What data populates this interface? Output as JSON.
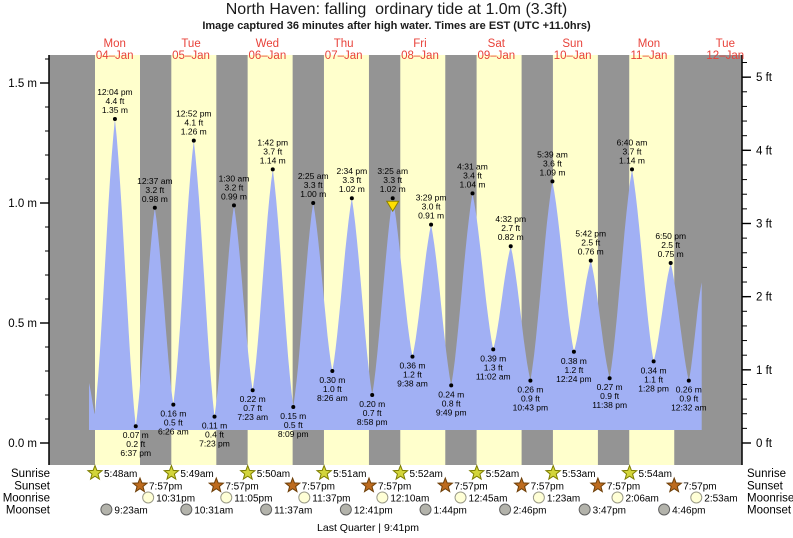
{
  "title": "North Haven: falling  ordinary tide at 1.0m (3.3ft)",
  "subtitle": "Image captured 36 minutes after high water. Times are EST (UTC +11.0hrs)",
  "days": [
    {
      "dow": "Mon",
      "date": "04–Jan"
    },
    {
      "dow": "Tue",
      "date": "05–Jan"
    },
    {
      "dow": "Wed",
      "date": "06–Jan"
    },
    {
      "dow": "Thu",
      "date": "07–Jan"
    },
    {
      "dow": "Fri",
      "date": "08–Jan"
    },
    {
      "dow": "Sat",
      "date": "09–Jan"
    },
    {
      "dow": "Sun",
      "date": "10–Jan"
    },
    {
      "dow": "Mon",
      "date": "11–Jan"
    },
    {
      "dow": "Tue",
      "date": "12–Jan"
    }
  ],
  "axis_left": {
    "unit": "m",
    "major_ticks": [
      {
        "m": 0.0,
        "label": "0.0 m"
      },
      {
        "m": 0.5,
        "label": "0.5 m"
      },
      {
        "m": 1.0,
        "label": "1.0 m"
      },
      {
        "m": 1.5,
        "label": "1.5 m"
      }
    ],
    "minor_step_m": 0.1,
    "minor_max_m": 1.6
  },
  "axis_right": {
    "unit": "ft",
    "major_ticks": [
      {
        "ft": 0,
        "label": "0 ft"
      },
      {
        "ft": 1,
        "label": "1 ft"
      },
      {
        "ft": 2,
        "label": "2 ft"
      },
      {
        "ft": 3,
        "label": "3 ft"
      },
      {
        "ft": 4,
        "label": "4 ft"
      },
      {
        "ft": 5,
        "label": "5 ft"
      }
    ],
    "minor_step_ft": 0.2,
    "minor_max_ft": 5.2
  },
  "chart_data": {
    "type": "area",
    "title": "North Haven tide height, Mon 04-Jan to Tue 12-Jan",
    "x_unit": "hours since Mon 04-Jan 00:00 EST",
    "y_left_label": "metres",
    "y_right_label": "feet",
    "ylim_m": [
      -0.09,
      1.62
    ],
    "grid": false,
    "edges": {
      "start": {
        "t": 3.9,
        "m": 0.25
      },
      "pre_low": {
        "t": 5.75,
        "m": 0.12
      },
      "end": {
        "t": 196.6,
        "m": 0.67
      }
    },
    "events": [
      {
        "kind": "high",
        "t": 12.067,
        "m": 1.35,
        "time": "12:04 pm",
        "ft_label": "4.4 ft",
        "m_label": "1.35 m"
      },
      {
        "kind": "low",
        "t": 18.617,
        "m": 0.07,
        "time": "6:37 pm",
        "ft_label": "0.2 ft",
        "m_label": "0.07 m"
      },
      {
        "kind": "high",
        "t": 24.617,
        "m": 0.98,
        "time": "12:37 am",
        "ft_label": "3.2 ft",
        "m_label": "0.98 m"
      },
      {
        "kind": "low",
        "t": 30.433,
        "m": 0.16,
        "time": "6:26 am",
        "ft_label": "0.5 ft",
        "m_label": "0.16 m"
      },
      {
        "kind": "high",
        "t": 36.867,
        "m": 1.26,
        "time": "12:52 pm",
        "ft_label": "4.1 ft",
        "m_label": "1.26 m"
      },
      {
        "kind": "low",
        "t": 43.383,
        "m": 0.11,
        "time": "7:23 pm",
        "ft_label": "0.4 ft",
        "m_label": "0.11 m"
      },
      {
        "kind": "high",
        "t": 49.5,
        "m": 0.99,
        "time": "1:30 am",
        "ft_label": "3.2 ft",
        "m_label": "0.99 m"
      },
      {
        "kind": "low",
        "t": 55.383,
        "m": 0.22,
        "time": "7:23 am",
        "ft_label": "0.7 ft",
        "m_label": "0.22 m"
      },
      {
        "kind": "high",
        "t": 61.7,
        "m": 1.14,
        "time": "1:42 pm",
        "ft_label": "3.7 ft",
        "m_label": "1.14 m"
      },
      {
        "kind": "low",
        "t": 68.15,
        "m": 0.15,
        "time": "8:09 pm",
        "ft_label": "0.5 ft",
        "m_label": "0.15 m"
      },
      {
        "kind": "high",
        "t": 74.417,
        "m": 1.0,
        "time": "2:25 am",
        "ft_label": "3.3 ft",
        "m_label": "1.00 m"
      },
      {
        "kind": "low",
        "t": 80.433,
        "m": 0.3,
        "time": "8:26 am",
        "ft_label": "1.0 ft",
        "m_label": "0.30 m"
      },
      {
        "kind": "high",
        "t": 86.567,
        "m": 1.02,
        "time": "2:34 pm",
        "ft_label": "3.3 ft",
        "m_label": "1.02 m"
      },
      {
        "kind": "low",
        "t": 92.967,
        "m": 0.2,
        "time": "8:58 pm",
        "ft_label": "0.7 ft",
        "m_label": "0.20 m"
      },
      {
        "kind": "high",
        "t": 99.417,
        "m": 1.02,
        "time": "3:25 am",
        "ft_label": "3.3 ft",
        "m_label": "1.02 m",
        "current": true
      },
      {
        "kind": "low",
        "t": 105.633,
        "m": 0.36,
        "time": "9:38 am",
        "ft_label": "1.2 ft",
        "m_label": "0.36 m"
      },
      {
        "kind": "high",
        "t": 111.483,
        "m": 0.91,
        "time": "3:29 pm",
        "ft_label": "3.0 ft",
        "m_label": "0.91 m"
      },
      {
        "kind": "low",
        "t": 117.817,
        "m": 0.24,
        "time": "9:49 pm",
        "ft_label": "0.8 ft",
        "m_label": "0.24 m"
      },
      {
        "kind": "high",
        "t": 124.517,
        "m": 1.04,
        "time": "4:31 am",
        "ft_label": "3.4 ft",
        "m_label": "1.04 m"
      },
      {
        "kind": "low",
        "t": 131.033,
        "m": 0.39,
        "time": "11:02 am",
        "ft_label": "1.3 ft",
        "m_label": "0.39 m"
      },
      {
        "kind": "high",
        "t": 136.533,
        "m": 0.82,
        "time": "4:32 pm",
        "ft_label": "2.7 ft",
        "m_label": "0.82 m"
      },
      {
        "kind": "low",
        "t": 142.717,
        "m": 0.26,
        "time": "10:43 pm",
        "ft_label": "0.9 ft",
        "m_label": "0.26 m"
      },
      {
        "kind": "high",
        "t": 149.65,
        "m": 1.09,
        "time": "5:39 am",
        "ft_label": "3.6 ft",
        "m_label": "1.09 m"
      },
      {
        "kind": "low",
        "t": 156.4,
        "m": 0.38,
        "time": "12:24 pm",
        "ft_label": "1.2 ft",
        "m_label": "0.38 m"
      },
      {
        "kind": "high",
        "t": 161.7,
        "m": 0.76,
        "time": "5:42 pm",
        "ft_label": "2.5 ft",
        "m_label": "0.76 m"
      },
      {
        "kind": "low",
        "t": 167.633,
        "m": 0.27,
        "time": "11:38 pm",
        "ft_label": "0.9 ft",
        "m_label": "0.27 m"
      },
      {
        "kind": "high",
        "t": 174.667,
        "m": 1.14,
        "time": "6:40 am",
        "ft_label": "3.7 ft",
        "m_label": "1.14 m"
      },
      {
        "kind": "low",
        "t": 181.467,
        "m": 0.34,
        "time": "1:28 pm",
        "ft_label": "1.1 ft",
        "m_label": "0.34 m"
      },
      {
        "kind": "high",
        "t": 186.833,
        "m": 0.75,
        "time": "6:50 pm",
        "ft_label": "2.5 ft",
        "m_label": "0.75 m"
      },
      {
        "kind": "low",
        "t": 192.533,
        "m": 0.26,
        "time": "12:32 am",
        "ft_label": "0.9 ft",
        "m_label": "0.26 m"
      }
    ]
  },
  "astro": {
    "row_labels": [
      "Sunrise",
      "Sunset",
      "Moonrise",
      "Moonset"
    ],
    "sunrise": [
      {
        "t": 5.8,
        "label": "5:48am"
      },
      {
        "t": 29.817,
        "label": "5:49am"
      },
      {
        "t": 53.833,
        "label": "5:50am"
      },
      {
        "t": 77.85,
        "label": "5:51am"
      },
      {
        "t": 101.867,
        "label": "5:52am"
      },
      {
        "t": 125.867,
        "label": "5:52am"
      },
      {
        "t": 149.883,
        "label": "5:53am"
      },
      {
        "t": 173.9,
        "label": "5:54am"
      }
    ],
    "sunset": [
      {
        "t": 19.95,
        "label": "7:57pm"
      },
      {
        "t": 43.95,
        "label": "7:57pm"
      },
      {
        "t": 67.95,
        "label": "7:57pm"
      },
      {
        "t": 91.95,
        "label": "7:57pm"
      },
      {
        "t": 115.95,
        "label": "7:57pm"
      },
      {
        "t": 139.95,
        "label": "7:57pm"
      },
      {
        "t": 163.95,
        "label": "7:57pm"
      },
      {
        "t": 187.95,
        "label": "7:57pm"
      }
    ],
    "moonrise": [
      {
        "t": 22.517,
        "label": "10:31pm"
      },
      {
        "t": 47.083,
        "label": "11:05pm"
      },
      {
        "t": 71.617,
        "label": "11:37pm"
      },
      {
        "t": 96.167,
        "label": "12:10am"
      },
      {
        "t": 120.75,
        "label": "12:45am"
      },
      {
        "t": 145.383,
        "label": "1:23am"
      },
      {
        "t": 170.1,
        "label": "2:06am"
      },
      {
        "t": 194.883,
        "label": "2:53am"
      }
    ],
    "moonset": [
      {
        "t": 9.383,
        "label": "9:23am"
      },
      {
        "t": 34.517,
        "label": "10:31am"
      },
      {
        "t": 59.617,
        "label": "11:37am"
      },
      {
        "t": 84.683,
        "label": "12:41pm"
      },
      {
        "t": 109.733,
        "label": "1:44pm"
      },
      {
        "t": 134.767,
        "label": "2:46pm"
      },
      {
        "t": 159.783,
        "label": "3:47pm"
      },
      {
        "t": 184.767,
        "label": "4:46pm"
      }
    ],
    "moon_phase": "Last Quarter | 9:41pm"
  },
  "colors": {
    "night_band": "#949494",
    "day_band": "#ffffcc",
    "tide_fill": "#a1b0f4",
    "day_label_red": "#e8423a",
    "current_marker_fill": "#ffdf00",
    "current_marker_stroke": "#8b8000",
    "sunrise_star_fill": "#d3d53a",
    "sunrise_star_stroke": "#7d7d00",
    "sunset_star_fill": "#bd6b1e",
    "sunset_star_stroke": "#6e3f08",
    "moonrise_fill": "#ffffd6",
    "moonrise_stroke": "#9a9a88",
    "moonset_fill": "#b3b3ab",
    "moonset_stroke": "#5f5f5f",
    "axis": "#000000",
    "text": "#000000"
  }
}
